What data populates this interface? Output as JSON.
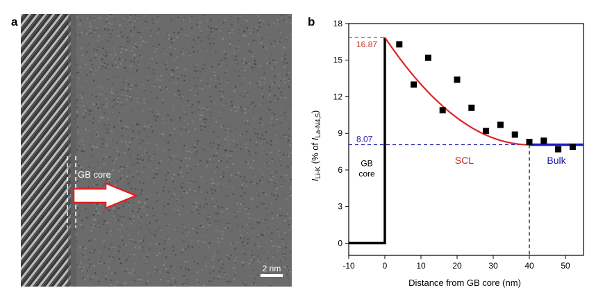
{
  "panel_a": {
    "label": "a",
    "annotation": "GB core",
    "scale_bar": "2 nm",
    "colors": {
      "arrow_fill": "#ffffff",
      "arrow_stroke": "#e02020"
    }
  },
  "panel_b": {
    "label": "b"
  },
  "chart_data": {
    "type": "scatter",
    "xlabel": "Distance from GB core (nm)",
    "ylabel_main": "I",
    "ylabel_main_sub": "Li-K",
    "ylabel_text": " (% of ",
    "ylabel_ref": "I",
    "ylabel_ref_sub": "La-N4,5",
    "ylabel_close": ")",
    "xlim": [
      -10,
      55
    ],
    "ylim": [
      -1,
      18
    ],
    "x_ticks": [
      -10,
      0,
      10,
      20,
      30,
      40,
      50
    ],
    "y_ticks": [
      0,
      3,
      6,
      9,
      12,
      15,
      18
    ],
    "grid": false,
    "points": {
      "x": [
        4,
        8,
        12,
        16,
        20,
        24,
        28,
        32,
        36,
        40,
        44,
        48,
        52
      ],
      "y": [
        16.3,
        13.0,
        15.2,
        10.9,
        13.4,
        11.1,
        9.2,
        9.7,
        8.9,
        8.3,
        8.4,
        7.7,
        7.9
      ]
    },
    "fit_curve": {
      "x0": 0,
      "y0": 16.87,
      "x1": 40,
      "y1": 8.07
    },
    "gb_core_step": {
      "x": [
        -10,
        0,
        0
      ],
      "y": [
        0,
        0,
        16.87
      ]
    },
    "bulk_level": {
      "x": [
        40,
        55
      ],
      "y": 8.07
    },
    "reference_lines": [
      {
        "value": 16.87,
        "label": "16.87",
        "color": "#c0392b"
      },
      {
        "value": 8.07,
        "label": "8.07",
        "color": "#1a1aa6"
      }
    ],
    "vertical_marker": {
      "x": 40
    },
    "regions": [
      {
        "lines": [
          "GB",
          "core"
        ],
        "x": -5,
        "y": 6.3,
        "color": "#000000"
      },
      {
        "lines": [
          "SCL"
        ],
        "x": 22,
        "y": 6.5,
        "color": "#c8281e"
      },
      {
        "lines": [
          "Bulk"
        ],
        "x": 47.5,
        "y": 6.5,
        "color": "#1a1aa6"
      }
    ],
    "colors": {
      "fit": "#e02424",
      "bulk": "#1c1cc4",
      "markers": "#000000",
      "step": "#000000"
    }
  }
}
